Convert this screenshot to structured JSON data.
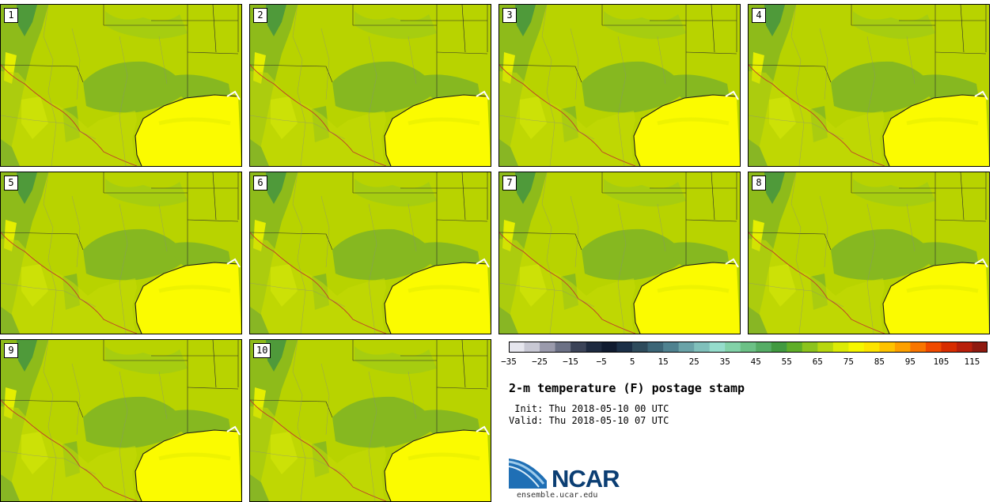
{
  "product_title": "2-m temperature (F) postage stamp",
  "init_label": " Init: Thu 2018-05-10 00 UTC",
  "valid_label": "Valid: Thu 2018-05-10 07 UTC",
  "logo": {
    "name": "NCAR",
    "url": "ensemble.ucar.edu"
  },
  "members": [
    "1",
    "2",
    "3",
    "4",
    "5",
    "6",
    "7",
    "8",
    "9",
    "10"
  ],
  "colorbar": {
    "min": -35,
    "max": 120,
    "step": 5,
    "ticks": [
      "−35",
      "−25",
      "−15",
      "−5",
      "5",
      "15",
      "25",
      "35",
      "45",
      "55",
      "65",
      "75",
      "85",
      "95",
      "105",
      "115"
    ],
    "colors": [
      "#e6e6ee",
      "#c8c8d4",
      "#9a9aac",
      "#6c7186",
      "#3b4358",
      "#1e2a40",
      "#101b30",
      "#1b2f47",
      "#2e4b5c",
      "#3c6677",
      "#4f8290",
      "#6aa3a8",
      "#80c0bb",
      "#95ddcc",
      "#82d2a8",
      "#6cc186",
      "#56ad66",
      "#419a40",
      "#5fae28",
      "#8cc31d",
      "#b7d70f",
      "#dceb06",
      "#f6f600",
      "#fde400",
      "#fec300",
      "#fda000",
      "#f97500",
      "#f04a00",
      "#d72c00",
      "#b81f0b",
      "#8e1a10"
    ]
  }
}
